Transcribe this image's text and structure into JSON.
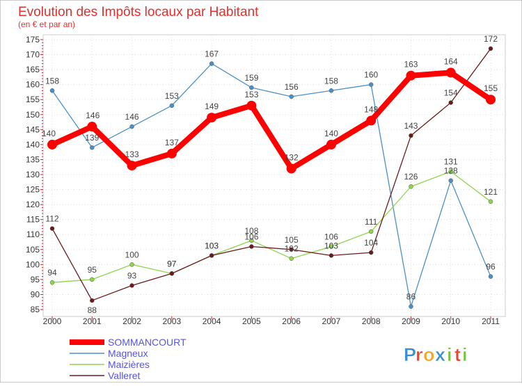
{
  "chart_data": {
    "type": "line",
    "title": "Evolution des Impôts locaux par Habitant",
    "subtitle": "(en € et par an)",
    "x": [
      "2000",
      "2001",
      "2002",
      "2003",
      "2004",
      "2005",
      "2006",
      "2007",
      "2008",
      "2009",
      "2010",
      "2011"
    ],
    "ylim": [
      85,
      175
    ],
    "yticks": [
      "85",
      "90",
      "95",
      "100",
      "105",
      "110",
      "115",
      "120",
      "125",
      "130",
      "135",
      "140",
      "145",
      "150",
      "155",
      "160",
      "165",
      "170",
      "175"
    ],
    "grid": true,
    "legend_position": "bottom-left",
    "series": [
      {
        "name": "SOMMANCOURT",
        "color": "#ff0000",
        "values": [
          140,
          146,
          133,
          137,
          149,
          153,
          132,
          140,
          148,
          163,
          164,
          155
        ],
        "labels": [
          "140",
          "146",
          "133",
          "137",
          "149",
          "153",
          "132",
          "140",
          "148",
          "163",
          "164",
          "155"
        ]
      },
      {
        "name": "Magneux",
        "color": "#4a90c8",
        "values": [
          158,
          139,
          146,
          153,
          167,
          159,
          156,
          158,
          160,
          86,
          128,
          96
        ],
        "labels": [
          "158",
          "139",
          "146",
          "153",
          "167",
          "159",
          "156",
          "158",
          "160",
          "86",
          "128",
          "96"
        ]
      },
      {
        "name": "Maizières",
        "color": "#8fd44a",
        "values": [
          94,
          95,
          100,
          97,
          103,
          108,
          102,
          106,
          111,
          126,
          131,
          121
        ],
        "labels": [
          "94",
          "95",
          "100",
          "97",
          "103",
          "108",
          "102",
          "106",
          "111",
          "126",
          "131",
          "121"
        ]
      },
      {
        "name": "Valleret",
        "color": "#6b1a1a",
        "values": [
          112,
          88,
          93,
          97,
          103,
          106,
          105,
          103,
          104,
          143,
          154,
          172
        ],
        "labels": [
          "112",
          "88",
          "93",
          "97",
          "103",
          "106",
          "105",
          "103",
          "104",
          "143",
          "154",
          "172"
        ]
      }
    ]
  },
  "brand": {
    "name": "Proxiti",
    "letters": [
      "P",
      "r",
      "o",
      "x",
      "i",
      "t",
      "i"
    ],
    "colors": [
      "#3a8fd0",
      "#e8432f",
      "#f5a623",
      "#3a8fd0",
      "#7cc242",
      "#e8432f",
      "#7cc242"
    ]
  }
}
